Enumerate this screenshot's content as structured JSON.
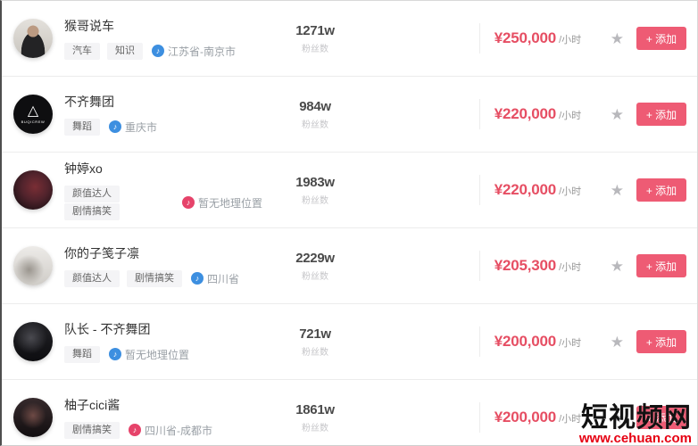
{
  "labels": {
    "followers_label": "粉丝数",
    "price_unit": "/小时",
    "add_button": "+ 添加"
  },
  "icons": {
    "star": "★",
    "location_note": "♪"
  },
  "colors": {
    "price": "#e64e63",
    "button": "#ee5b74",
    "star": "#b8b8bc",
    "location_blue": "#3d8fe0",
    "location_red": "#e6436a"
  },
  "watermark": {
    "title": "短视频网",
    "url": "www.cehuan.com"
  },
  "rows": [
    {
      "name": "猴哥说车",
      "tags": [
        "汽车",
        "知识"
      ],
      "location": "江苏省-南京市",
      "location_icon_color": "#3d8fe0",
      "followers": "1271w",
      "price": "¥250,000",
      "avatar": {
        "bg": "radial-gradient(circle at 50% 32%, #bb9a82 0%, #bb9a82 17%, rgba(0,0,0,0) 18%), radial-gradient(ellipse at 50% 86%, #232325 0%, #232325 42%, rgba(0,0,0,0) 43%), linear-gradient(180deg, #e4e1dc, #c8c4be)",
        "emblem": "",
        "emblem_text": ""
      }
    },
    {
      "name": "不齐舞团",
      "tags": [
        "舞蹈"
      ],
      "location": "重庆市",
      "location_icon_color": "#3d8fe0",
      "followers": "984w",
      "price": "¥220,000",
      "avatar": {
        "bg": "#0e0e10",
        "emblem": "△",
        "emblem_text": "BUQICREW"
      }
    },
    {
      "name": "钟婷xo",
      "tags": [
        "颜值达人",
        "剧情搞笑"
      ],
      "location": "暂无地理位置",
      "location_icon_color": "#e6436a",
      "followers": "1983w",
      "price": "¥220,000",
      "avatar": {
        "bg": "radial-gradient(circle at 55% 42%, #7a2e35 0%, #51232c 42%, #241318 78%)",
        "emblem": "",
        "emblem_text": ""
      }
    },
    {
      "name": "你的子笺子凛",
      "tags": [
        "颜值达人",
        "剧情搞笑"
      ],
      "location": "四川省",
      "location_icon_color": "#3d8fe0",
      "followers": "2229w",
      "price": "¥205,300",
      "avatar": {
        "bg": "radial-gradient(circle at 40% 60%, #9a958e 0%, rgba(0,0,0,0) 45%), linear-gradient(180deg, #edebe8, #cfccc7)",
        "emblem": "",
        "emblem_text": ""
      }
    },
    {
      "name": "队长 - 不齐舞团",
      "tags": [
        "舞蹈"
      ],
      "location": "暂无地理位置",
      "location_icon_color": "#3d8fe0",
      "followers": "721w",
      "price": "¥200,000",
      "avatar": {
        "bg": "radial-gradient(circle at 45% 40%, #4a4a50 0%, rgba(0,0,0,0) 50%), linear-gradient(180deg, #222226, #0d0d10)",
        "emblem": "",
        "emblem_text": ""
      }
    },
    {
      "name": "柚子cici酱",
      "tags": [
        "剧情搞笑"
      ],
      "location": "四川省-成都市",
      "location_icon_color": "#e6436a",
      "followers": "1861w",
      "price": "¥200,000",
      "avatar": {
        "bg": "radial-gradient(circle at 50% 45%, #6e4a45 0%, rgba(0,0,0,0) 45%), linear-gradient(180deg, #362a2c, #120e10)",
        "emblem": "",
        "emblem_text": ""
      }
    }
  ]
}
